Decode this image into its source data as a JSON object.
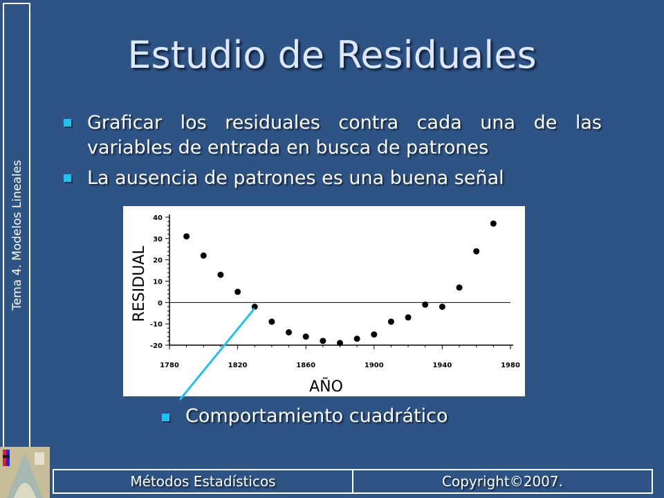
{
  "sidebar": {
    "label": "Tema 4. Modelos Lineales"
  },
  "title": "Estudio de Residuales",
  "bullets": [
    "Graficar los residuales contra cada una de las variables de entrada en busca de patrones",
    "La ausencia de patrones es una buena señal"
  ],
  "note": "Comportamiento cuadrático",
  "footer": {
    "left": "Métodos Estadísticos",
    "right": "Copyright©2007."
  },
  "colors": {
    "background": "#2e5485",
    "bullet": "#1ac4f0",
    "pointer_line": "#1ac4f0"
  },
  "chart_data": {
    "type": "scatter",
    "xlabel": "AÑO",
    "ylabel": "RESIDUAL",
    "xlim": [
      1780,
      1980
    ],
    "ylim": [
      -20,
      40
    ],
    "x_ticks": [
      1780,
      1820,
      1860,
      1900,
      1940,
      1980
    ],
    "y_ticks": [
      -20,
      -10,
      0,
      10,
      20,
      30,
      40
    ],
    "reference_line_y": 0,
    "points": [
      {
        "x": 1790,
        "y": 31
      },
      {
        "x": 1800,
        "y": 22
      },
      {
        "x": 1810,
        "y": 13
      },
      {
        "x": 1820,
        "y": 5
      },
      {
        "x": 1830,
        "y": -2
      },
      {
        "x": 1840,
        "y": -9
      },
      {
        "x": 1850,
        "y": -14
      },
      {
        "x": 1860,
        "y": -16
      },
      {
        "x": 1870,
        "y": -18
      },
      {
        "x": 1880,
        "y": -19
      },
      {
        "x": 1890,
        "y": -17
      },
      {
        "x": 1900,
        "y": -15
      },
      {
        "x": 1910,
        "y": -9
      },
      {
        "x": 1920,
        "y": -7
      },
      {
        "x": 1930,
        "y": -1
      },
      {
        "x": 1940,
        "y": -2
      },
      {
        "x": 1950,
        "y": 7
      },
      {
        "x": 1960,
        "y": 24
      },
      {
        "x": 1970,
        "y": 37
      }
    ]
  }
}
